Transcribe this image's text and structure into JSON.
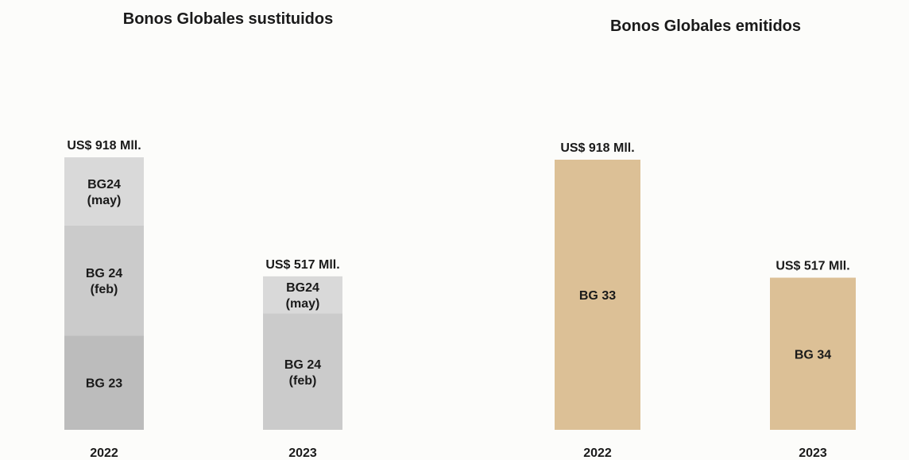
{
  "chart_data": [
    {
      "type": "bar",
      "stacked": true,
      "title": "Bonos Globales sustituidos",
      "categories": [
        "2022",
        "2023"
      ],
      "unit": "US$ Mil.",
      "totals": [
        918,
        517
      ],
      "total_labels": [
        "US$ 918 Mll.",
        "US$ 517 Mll."
      ],
      "ylim": [
        0,
        918
      ],
      "bars": [
        {
          "category": "2022",
          "segments": [
            {
              "label": "BG 23",
              "value": 318,
              "color": "#bcbcbc"
            },
            {
              "label": "BG 24\n(feb)",
              "value": 370,
              "color": "#cbcbcb"
            },
            {
              "label": "BG24\n(may)",
              "value": 230,
              "color": "#d9d9d9"
            }
          ]
        },
        {
          "category": "2023",
          "segments": [
            {
              "label": "BG 24\n(feb)",
              "value": 392,
              "color": "#cbcbcb"
            },
            {
              "label": "BG24\n(may)",
              "value": 125,
              "color": "#d9d9d9"
            }
          ]
        }
      ]
    },
    {
      "type": "bar",
      "stacked": false,
      "title": "Bonos Globales emitidos",
      "categories": [
        "2022",
        "2023"
      ],
      "unit": "US$ Mil.",
      "totals": [
        918,
        517
      ],
      "total_labels": [
        "US$ 918 Mll.",
        "US$ 517 Mll."
      ],
      "ylim": [
        0,
        918
      ],
      "bars": [
        {
          "category": "2022",
          "segments": [
            {
              "label": "BG 33",
              "value": 918,
              "color": "#dcc096"
            }
          ]
        },
        {
          "category": "2023",
          "segments": [
            {
              "label": "BG 34",
              "value": 517,
              "color": "#dcc096"
            }
          ]
        }
      ]
    }
  ]
}
